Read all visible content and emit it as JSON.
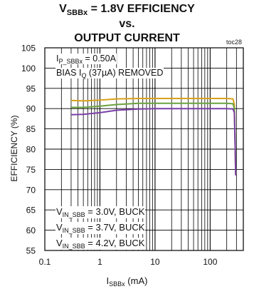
{
  "title": {
    "line1_main": "V",
    "line1_sub": "SBBx",
    "line1_rest": " = 1.8V EFFICIENCY",
    "line2": "vs.",
    "line3": "OUTPUT CURRENT"
  },
  "toc": "toc28",
  "annotation": {
    "line1_main": "I",
    "line1_sub": "P_SBBx",
    "line1_rest": " = 0.50A",
    "line2_main": "BIAS I",
    "line2_sub": "Q",
    "line2_rest": " (37µA) REMOVED"
  },
  "xlabel": {
    "main": "I",
    "sub": "SBBx",
    "rest": " (mA)"
  },
  "colors": {
    "s1": "#D9A11B",
    "s2": "#6BA33E",
    "s3": "#7A3FA8"
  },
  "chart_data": {
    "type": "line",
    "title": "VSBBx = 1.8V EFFICIENCY vs. OUTPUT CURRENT",
    "xlabel": "ISBBx (mA)",
    "ylabel": "EFFICIENCY (%)",
    "xscale": "log",
    "xlim": [
      0.1,
      400
    ],
    "ylim": [
      55,
      105
    ],
    "grid": true,
    "legend_position": "bottom-left",
    "x_ticks": [
      "0.1",
      "1",
      "10",
      "100"
    ],
    "y_ticks": [
      "55",
      "60",
      "65",
      "70",
      "75",
      "80",
      "85",
      "90",
      "95",
      "100",
      "105"
    ],
    "series": [
      {
        "name": "VIN_SBB = 3.0V, BUCK",
        "legend_main": "V",
        "legend_sub": "IN_SBB",
        "legend_rest": " = 3.0V, BUCK",
        "color": "#D9A11B",
        "x": [
          0.3,
          0.5,
          1,
          2,
          5,
          10,
          20,
          50,
          100,
          200,
          260,
          275,
          285,
          290
        ],
        "y": [
          92.0,
          91.9,
          92.1,
          92.4,
          92.5,
          92.5,
          92.5,
          92.5,
          92.5,
          92.5,
          92.4,
          91.0,
          80,
          74
        ]
      },
      {
        "name": "VIN_SBB = 3.7V, BUCK",
        "legend_main": "V",
        "legend_sub": "IN_SBB",
        "legend_rest": " = 3.7V, BUCK",
        "color": "#6BA33E",
        "x": [
          0.3,
          0.5,
          1,
          2,
          5,
          10,
          20,
          50,
          100,
          200,
          260,
          275,
          285,
          290
        ],
        "y": [
          90.3,
          90.3,
          90.6,
          91.0,
          91.3,
          91.3,
          91.3,
          91.3,
          91.3,
          91.3,
          91.2,
          90.0,
          80,
          73.8
        ]
      },
      {
        "name": "VIN_SBB = 4.2V, BUCK",
        "legend_main": "V",
        "legend_sub": "IN_SBB",
        "legend_rest": " = 4.2V, BUCK",
        "color": "#7A3FA8",
        "x": [
          0.3,
          0.5,
          1,
          2,
          5,
          10,
          20,
          50,
          100,
          200,
          260,
          275,
          285,
          290
        ],
        "y": [
          88.5,
          88.6,
          89.0,
          89.6,
          89.9,
          90.0,
          90.0,
          90.0,
          90.0,
          90.0,
          89.9,
          89.0,
          80,
          73.5
        ]
      }
    ]
  }
}
